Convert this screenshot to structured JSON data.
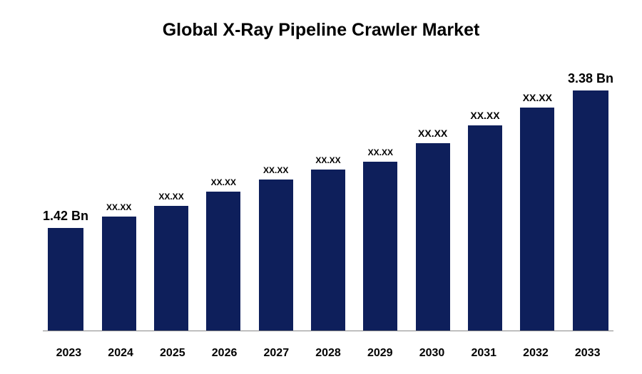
{
  "chart": {
    "type": "bar",
    "title": "Global X-Ray Pipeline Crawler Market",
    "title_fontsize": 25,
    "title_color": "#000000",
    "background_color": "#ffffff",
    "axis_color": "#888888",
    "categories": [
      "2023",
      "2024",
      "2025",
      "2026",
      "2027",
      "2028",
      "2029",
      "2030",
      "2031",
      "2032",
      "2033"
    ],
    "values": [
      1.42,
      1.58,
      1.73,
      1.93,
      2.1,
      2.24,
      2.34,
      2.6,
      2.85,
      3.1,
      3.38
    ],
    "value_labels": [
      "1.42 Bn",
      "XX.XX",
      "XX.XX",
      "XX.XX",
      "XX.XX",
      "XX.XX",
      "XX.XX",
      "XX.XX",
      "XX.XX",
      "XX.XX",
      "3.38 Bn"
    ],
    "label_font_sizes": [
      18,
      12,
      12,
      12,
      12,
      12,
      12,
      14,
      14,
      14,
      18
    ],
    "bar_color": "#0e1f5b",
    "ylim_max": 3.6,
    "bar_width_pct": 78,
    "x_label_fontsize": 16,
    "x_label_color": "#000000"
  }
}
